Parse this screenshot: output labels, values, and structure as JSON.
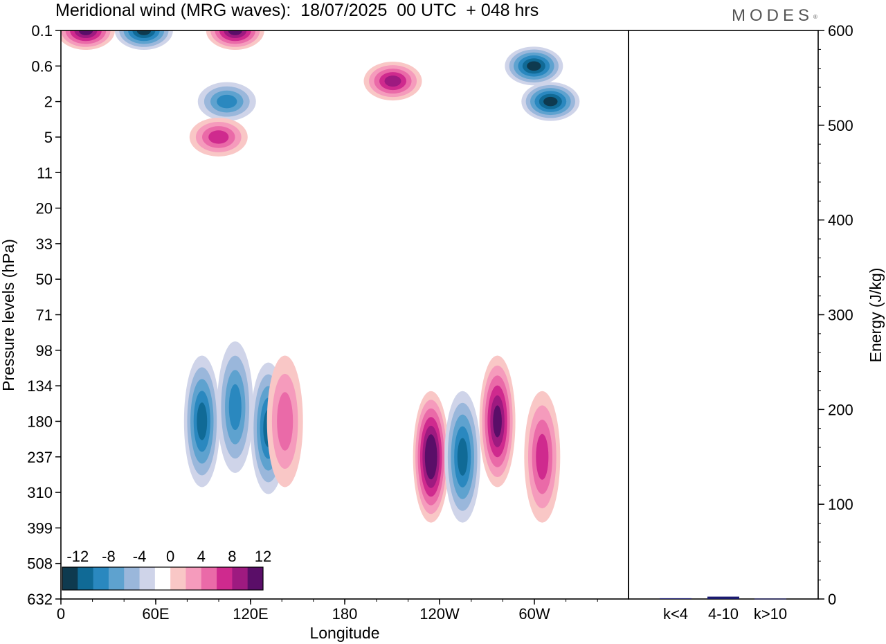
{
  "header": {
    "title": "Meridional wind (MRG waves):  18/07/2025  00 UTC  + 048 hrs",
    "brand": "MODES",
    "brand_mark": "®"
  },
  "chart_data": [
    {
      "type": "heatmap",
      "title": "Meridional wind (MRG waves):  18/07/2025  00 UTC  + 048 hrs",
      "xlabel": "Longitude",
      "ylabel": "Pressure levels (hPa)",
      "x_ticks": [
        "0",
        "60E",
        "120E",
        "180",
        "120W",
        "60W"
      ],
      "y_ticks": [
        "0.1",
        "0.6",
        "2",
        "5",
        "11",
        "20",
        "33",
        "50",
        "71",
        "98",
        "134",
        "180",
        "237",
        "310",
        "399",
        "508",
        "632"
      ],
      "colorbar": {
        "labels": [
          "-12",
          "-8",
          "-4",
          "0",
          "4",
          "8",
          "12"
        ],
        "levels": [
          -14,
          -12,
          -10,
          -8,
          -6,
          -4,
          -2,
          2,
          4,
          6,
          8,
          10,
          12,
          14
        ],
        "colors": [
          "#0e3a4f",
          "#106a96",
          "#2a88bf",
          "#5ea2cf",
          "#9ab7db",
          "#cfd4e9",
          "#ffffff",
          "#f9c7c6",
          "#f59bbc",
          "#ea6aa8",
          "#cf2a8e",
          "#9e1a80",
          "#5a0e68"
        ]
      },
      "features": [
        {
          "lon": 15,
          "level": "0.1",
          "value": 13
        },
        {
          "lon": 50,
          "level": "0.1",
          "value": -13
        },
        {
          "lon": 105,
          "level": "0.1",
          "value": 12
        },
        {
          "lon": 200,
          "level": "1",
          "value": 11
        },
        {
          "lon": 100,
          "level": "2",
          "value": -9
        },
        {
          "lon": 285,
          "level": "0.6",
          "value": -13
        },
        {
          "lon": 295,
          "level": "2",
          "value": -12
        },
        {
          "lon": 95,
          "level": "5",
          "value": 8
        },
        {
          "lon": 85,
          "level": "180",
          "value": -10
        },
        {
          "lon": 105,
          "level": "160",
          "value": -9
        },
        {
          "lon": 125,
          "level": "190",
          "value": -10
        },
        {
          "lon": 223,
          "level": "237",
          "value": 14
        },
        {
          "lon": 242,
          "level": "237",
          "value": -11
        },
        {
          "lon": 263,
          "level": "180",
          "value": 12
        },
        {
          "lon": 290,
          "level": "237",
          "value": 8
        },
        {
          "lon": 135,
          "level": "180",
          "value": 7
        }
      ]
    },
    {
      "type": "bar",
      "categories": [
        "k<4",
        "4-10",
        "k>10"
      ],
      "values": [
        0.8,
        2.5,
        0.4
      ],
      "ylabel": "Energy (J/kg)",
      "ylim": [
        0,
        600
      ],
      "y_ticks": [
        "0",
        "100",
        "200",
        "300",
        "400",
        "500",
        "600"
      ],
      "bar_color": "#1a1a6e"
    }
  ]
}
